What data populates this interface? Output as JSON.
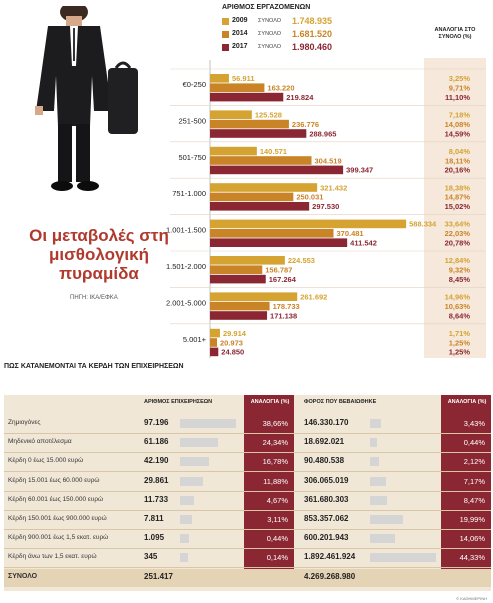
{
  "infographic": {
    "title": "Οι μεταβολές στη μισθολογική πυραμίδα",
    "source": "ΠΗΓΗ: ΙΚΑ/ΕΦΚΑ",
    "copyright": "© ΚΑΘΗΜΕΡΙΝΗ"
  },
  "colors": {
    "y2009": "#d4a332",
    "y2014": "#c98427",
    "y2017": "#8b2633",
    "share_bg": "#f6e8da",
    "table_bg": "#f1e7d7"
  },
  "chart_data": [
    {
      "type": "bar",
      "orientation": "horizontal",
      "title": "ΑΡΙΘΜΟΣ ΕΡΓΑΖΟΜΕΝΩΝ",
      "legend": [
        {
          "year": "2009",
          "label": "ΣΥΝΟΛΟ",
          "total": "1.748.935"
        },
        {
          "year": "2014",
          "label": "ΣΥΝΟΛΟ",
          "total": "1.681.520"
        },
        {
          "year": "2017",
          "label": "ΣΥΝΟΛΟ",
          "total": "1.980.460"
        }
      ],
      "share_header": "ΑΝΑΛΟΓΙΑ ΣΤΟ ΣΥΝΟΛΟ (%)",
      "categories": [
        "€0-250",
        "251-500",
        "501-750",
        "751-1.000",
        "1.001-1.500",
        "1.501-2.000",
        "2.001-5.000",
        "5.001+"
      ],
      "series": [
        {
          "name": "2009",
          "values": [
            56911,
            125528,
            140571,
            321432,
            588334,
            224553,
            261692,
            29914
          ],
          "labels": [
            "56.911",
            "125.528",
            "140.571",
            "321.432",
            "588.334",
            "224.553",
            "261.692",
            "29.914"
          ],
          "shares": [
            "3,25%",
            "7,18%",
            "8,04%",
            "18,38%",
            "33,64%",
            "12,84%",
            "14,96%",
            "1,71%"
          ]
        },
        {
          "name": "2014",
          "values": [
            163220,
            236776,
            304519,
            250031,
            370481,
            156787,
            178733,
            20973
          ],
          "labels": [
            "163.220",
            "236.776",
            "304.519",
            "250.031",
            "370.481",
            "156.787",
            "178.733",
            "20.973"
          ],
          "shares": [
            "9,71%",
            "14,08%",
            "18,11%",
            "14,87%",
            "22,03%",
            "9,32%",
            "10,63%",
            "1,25%"
          ]
        },
        {
          "name": "2017",
          "values": [
            219824,
            288965,
            399347,
            297530,
            411542,
            167264,
            171138,
            24850
          ],
          "labels": [
            "219.824",
            "288.965",
            "399.347",
            "297.530",
            "411.542",
            "167.264",
            "171.138",
            "24.850"
          ],
          "shares": [
            "11,10%",
            "14,59%",
            "20,16%",
            "15,02%",
            "20,78%",
            "8,45%",
            "8,64%",
            "1,25%"
          ]
        }
      ],
      "xlim": [
        0,
        600000
      ]
    },
    {
      "type": "table",
      "title": "ΠΩΣ ΚΑΤΑΝΕΜΟΝΤΑΙ ΤΑ ΚΕΡΔΗ ΤΩΝ ΕΠΙΧΕΙΡΗΣΕΩΝ",
      "columns": [
        "",
        "ΑΡΙΘΜΟΣ ΕΠΙΧΕΙΡΗΣΕΩΝ",
        "ΑΝΑΛΟΓΙΑ (%)",
        "ΦΟΡΟΣ ΠΟΥ ΒΕΒΑΙΩΘΗΚΕ",
        "ΑΝΑΛΟΓΙΑ (%)"
      ],
      "rows": [
        {
          "category": "Ζημιογόνες",
          "firms": "97.196",
          "firms_value": 97196,
          "firms_share": "38,66%",
          "tax": "146.330.170",
          "tax_value": 146330170,
          "tax_share": "3,43%"
        },
        {
          "category": "Μηδενικό αποτέλεσμα",
          "firms": "61.186",
          "firms_value": 61186,
          "firms_share": "24,34%",
          "tax": "18.692.021",
          "tax_value": 18692021,
          "tax_share": "0,44%"
        },
        {
          "category": "Κέρδη 0 έως 15.000 ευρώ",
          "firms": "42.190",
          "firms_value": 42190,
          "firms_share": "16,78%",
          "tax": "90.480.538",
          "tax_value": 90480538,
          "tax_share": "2,12%"
        },
        {
          "category": "Κέρδη 15.001 έως 60.000 ευρώ",
          "firms": "29.861",
          "firms_value": 29861,
          "firms_share": "11,88%",
          "tax": "306.065.019",
          "tax_value": 306065019,
          "tax_share": "7,17%"
        },
        {
          "category": "Κέρδη 60.001 έως 150.000 ευρώ",
          "firms": "11.733",
          "firms_value": 11733,
          "firms_share": "4,67%",
          "tax": "361.680.303",
          "tax_value": 361680303,
          "tax_share": "8,47%"
        },
        {
          "category": "Κέρδη 150.001 έως 900.000 ευρώ",
          "firms": "7.811",
          "firms_value": 7811,
          "firms_share": "3,11%",
          "tax": "853.357.062",
          "tax_value": 853357062,
          "tax_share": "19,99%"
        },
        {
          "category": "Κέρδη 900.001 έως 1,5 εκατ. ευρώ",
          "firms": "1.095",
          "firms_value": 1095,
          "firms_share": "0,44%",
          "tax": "600.201.943",
          "tax_value": 600201943,
          "tax_share": "14,06%"
        },
        {
          "category": "Κέρδη άνω των 1,5 εκατ. ευρώ",
          "firms": "345",
          "firms_value": 345,
          "firms_share": "0,14%",
          "tax": "1.892.461.924",
          "tax_value": 1892461924,
          "tax_share": "44,33%"
        }
      ],
      "total": {
        "category": "ΣΥΝΟΛΟ",
        "firms": "251.417",
        "tax": "4.269.268.980"
      }
    }
  ]
}
